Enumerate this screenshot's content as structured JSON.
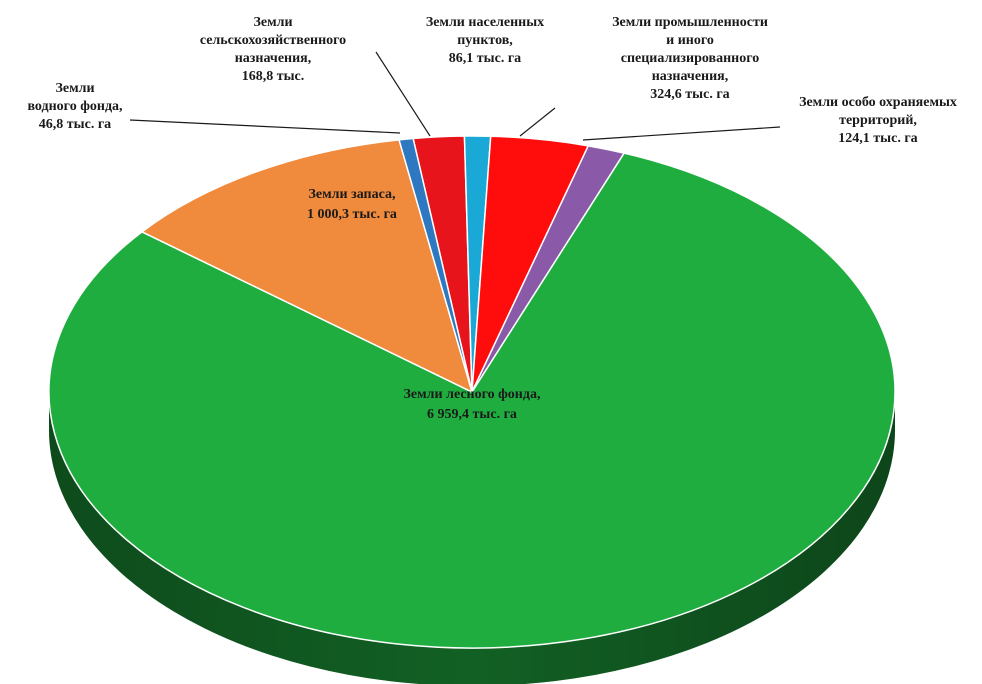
{
  "chart_data": {
    "type": "pie",
    "title": "",
    "unit": "тыс. га",
    "slices": [
      {
        "name": "Земли сельскохозяйственного назначения",
        "value": 168.8,
        "color": "#e8141b",
        "label_lines": [
          "Земли",
          "сельскохозяйственного",
          "назначения,",
          "168,8 тыс."
        ]
      },
      {
        "name": "Земли населенных пунктов",
        "value": 86.1,
        "color": "#1aa9d6",
        "label_lines": [
          "Земли населенных",
          "пунктов,",
          "86,1 тыс. га"
        ]
      },
      {
        "name": "Земли промышленности и иного специализированного назначения",
        "value": 324.6,
        "color": "#ff0d0d",
        "label_lines": [
          "Земли промышленности",
          "и  иного",
          "специализированного",
          "назначения,",
          "324,6 тыс. га"
        ]
      },
      {
        "name": "Земли особо охраняемых территорий",
        "value": 124.1,
        "color": "#8a5aa8",
        "label_lines": [
          "Земли особо охраняемых",
          "территорий,",
          "124,1 тыс. га"
        ]
      },
      {
        "name": "Земли лесного фонда",
        "value": 6959.4,
        "color": "#20ad40",
        "label_lines": [
          "Земли лесного фонда,",
          "6 959,4 тыс. га"
        ]
      },
      {
        "name": "Земли запаса",
        "value": 1000.3,
        "color": "#f08a3c",
        "label_lines": [
          "Земли запаса,",
          "1 000,3 тыс. га"
        ]
      },
      {
        "name": "Земли водного фонда",
        "value": 46.8,
        "color": "#2e78c2",
        "label_lines": [
          "Земли",
          "водного фонда,",
          "46,8 тыс. га"
        ]
      }
    ]
  }
}
